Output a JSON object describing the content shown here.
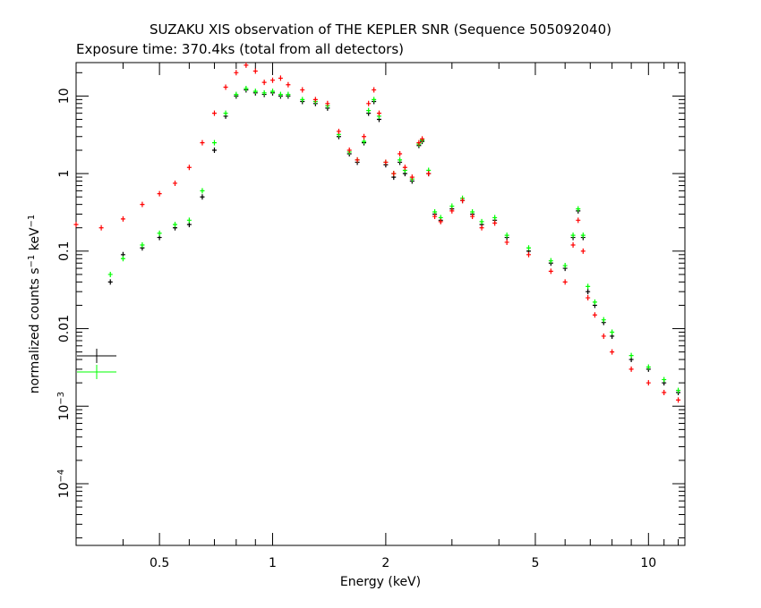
{
  "chart_data": {
    "type": "scatter",
    "title": "SUZAKU XIS observation of THE KEPLER SNR (Sequence 505092040)",
    "subtitle": "Exposure time: 370.4ks (total from all detectors)",
    "xlabel": "Energy (keV)",
    "ylabel": {
      "prefix": "normalized counts s",
      "sup1": "−1",
      "mid": " keV",
      "sup2": "−1"
    },
    "x_scale": "log",
    "y_scale": "log",
    "xlim": [
      0.3,
      12.5
    ],
    "ylim": [
      1.6e-05,
      27
    ],
    "x_ticks": [
      {
        "value": 0.5,
        "label": "0.5"
      },
      {
        "value": 1,
        "label": "1"
      },
      {
        "value": 2,
        "label": "2"
      },
      {
        "value": 5,
        "label": "5"
      },
      {
        "value": 10,
        "label": "10"
      }
    ],
    "y_ticks": [
      {
        "value": 10,
        "label": "10"
      },
      {
        "value": 1,
        "label": "1"
      },
      {
        "value": 0.1,
        "label": "0.1"
      },
      {
        "value": 0.01,
        "label": "0.01"
      },
      {
        "value": 0.001,
        "base": "10",
        "exp": "−3"
      },
      {
        "value": 0.0001,
        "base": "10",
        "exp": "−4"
      }
    ],
    "grid": false,
    "legend": {
      "entries": [
        {
          "color": "#000000"
        },
        {
          "color": "#00ff00"
        }
      ]
    },
    "series": [
      {
        "color": "#000000",
        "points": [
          [
            0.37,
            0.04
          ],
          [
            0.4,
            0.09
          ],
          [
            0.45,
            0.11
          ],
          [
            0.5,
            0.15
          ],
          [
            0.55,
            0.2
          ],
          [
            0.6,
            0.22
          ],
          [
            0.65,
            0.5
          ],
          [
            0.7,
            2.0
          ],
          [
            0.75,
            5.5
          ],
          [
            0.8,
            10.0
          ],
          [
            0.85,
            12.0
          ],
          [
            0.9,
            11.0
          ],
          [
            0.95,
            10.5
          ],
          [
            1.0,
            11.0
          ],
          [
            1.05,
            10.0
          ],
          [
            1.1,
            10.0
          ],
          [
            1.2,
            8.5
          ],
          [
            1.3,
            8.0
          ],
          [
            1.4,
            7.0
          ],
          [
            1.5,
            3.0
          ],
          [
            1.6,
            1.8
          ],
          [
            1.68,
            1.4
          ],
          [
            1.75,
            2.5
          ],
          [
            1.8,
            6.0
          ],
          [
            1.86,
            8.5
          ],
          [
            1.92,
            5.0
          ],
          [
            2.0,
            1.3
          ],
          [
            2.1,
            0.9
          ],
          [
            2.18,
            1.4
          ],
          [
            2.25,
            1.0
          ],
          [
            2.35,
            0.8
          ],
          [
            2.45,
            2.3
          ],
          [
            2.5,
            2.6
          ],
          [
            2.6,
            1.0
          ],
          [
            2.7,
            0.3
          ],
          [
            2.8,
            0.25
          ],
          [
            3.0,
            0.35
          ],
          [
            3.2,
            0.45
          ],
          [
            3.4,
            0.3
          ],
          [
            3.6,
            0.22
          ],
          [
            3.9,
            0.25
          ],
          [
            4.2,
            0.15
          ],
          [
            4.8,
            0.1
          ],
          [
            5.5,
            0.07
          ],
          [
            6.0,
            0.06
          ],
          [
            6.3,
            0.15
          ],
          [
            6.5,
            0.33
          ],
          [
            6.7,
            0.15
          ],
          [
            6.9,
            0.03
          ],
          [
            7.2,
            0.02
          ],
          [
            7.6,
            0.012
          ],
          [
            8.0,
            0.008
          ],
          [
            9.0,
            0.004
          ],
          [
            10.0,
            0.003
          ],
          [
            11.0,
            0.002
          ],
          [
            12.0,
            0.0015
          ]
        ]
      },
      {
        "color": "#00ff00",
        "points": [
          [
            0.37,
            0.05
          ],
          [
            0.4,
            0.08
          ],
          [
            0.45,
            0.12
          ],
          [
            0.5,
            0.17
          ],
          [
            0.55,
            0.22
          ],
          [
            0.6,
            0.25
          ],
          [
            0.65,
            0.6
          ],
          [
            0.7,
            2.5
          ],
          [
            0.75,
            6.0
          ],
          [
            0.8,
            10.5
          ],
          [
            0.85,
            12.5
          ],
          [
            0.9,
            11.5
          ],
          [
            0.95,
            11.0
          ],
          [
            1.0,
            11.5
          ],
          [
            1.05,
            10.5
          ],
          [
            1.1,
            10.5
          ],
          [
            1.2,
            9.0
          ],
          [
            1.3,
            8.5
          ],
          [
            1.4,
            7.5
          ],
          [
            1.5,
            3.2
          ],
          [
            1.6,
            1.9
          ],
          [
            1.68,
            1.5
          ],
          [
            1.75,
            2.6
          ],
          [
            1.8,
            6.5
          ],
          [
            1.86,
            9.0
          ],
          [
            1.92,
            5.5
          ],
          [
            2.0,
            1.4
          ],
          [
            2.1,
            1.0
          ],
          [
            2.18,
            1.5
          ],
          [
            2.25,
            1.1
          ],
          [
            2.35,
            0.85
          ],
          [
            2.45,
            2.4
          ],
          [
            2.5,
            2.7
          ],
          [
            2.6,
            1.1
          ],
          [
            2.7,
            0.32
          ],
          [
            2.8,
            0.27
          ],
          [
            3.0,
            0.38
          ],
          [
            3.2,
            0.48
          ],
          [
            3.4,
            0.32
          ],
          [
            3.6,
            0.24
          ],
          [
            3.9,
            0.27
          ],
          [
            4.2,
            0.16
          ],
          [
            4.8,
            0.11
          ],
          [
            5.5,
            0.075
          ],
          [
            6.0,
            0.065
          ],
          [
            6.3,
            0.16
          ],
          [
            6.5,
            0.35
          ],
          [
            6.7,
            0.16
          ],
          [
            6.9,
            0.035
          ],
          [
            7.2,
            0.022
          ],
          [
            7.6,
            0.013
          ],
          [
            8.0,
            0.009
          ],
          [
            9.0,
            0.0045
          ],
          [
            10.0,
            0.0032
          ],
          [
            11.0,
            0.0022
          ],
          [
            12.0,
            0.0016
          ]
        ]
      },
      {
        "color": "#ff0000",
        "points": [
          [
            0.3,
            0.22
          ],
          [
            0.35,
            0.2
          ],
          [
            0.4,
            0.26
          ],
          [
            0.45,
            0.4
          ],
          [
            0.5,
            0.55
          ],
          [
            0.55,
            0.75
          ],
          [
            0.6,
            1.2
          ],
          [
            0.65,
            2.5
          ],
          [
            0.7,
            6.0
          ],
          [
            0.75,
            13.0
          ],
          [
            0.8,
            20.0
          ],
          [
            0.85,
            25.0
          ],
          [
            0.9,
            21.0
          ],
          [
            0.95,
            15.0
          ],
          [
            1.0,
            16.0
          ],
          [
            1.05,
            17.0
          ],
          [
            1.1,
            14.0
          ],
          [
            1.2,
            12.0
          ],
          [
            1.3,
            9.0
          ],
          [
            1.4,
            8.0
          ],
          [
            1.5,
            3.5
          ],
          [
            1.6,
            2.0
          ],
          [
            1.68,
            1.5
          ],
          [
            1.75,
            3.0
          ],
          [
            1.8,
            8.0
          ],
          [
            1.86,
            12.0
          ],
          [
            1.92,
            6.0
          ],
          [
            2.0,
            1.4
          ],
          [
            2.1,
            1.0
          ],
          [
            2.18,
            1.8
          ],
          [
            2.25,
            1.2
          ],
          [
            2.35,
            0.9
          ],
          [
            2.45,
            2.5
          ],
          [
            2.5,
            2.8
          ],
          [
            2.6,
            1.0
          ],
          [
            2.7,
            0.28
          ],
          [
            2.8,
            0.24
          ],
          [
            3.0,
            0.33
          ],
          [
            3.2,
            0.45
          ],
          [
            3.4,
            0.28
          ],
          [
            3.6,
            0.2
          ],
          [
            3.9,
            0.23
          ],
          [
            4.2,
            0.13
          ],
          [
            4.8,
            0.09
          ],
          [
            5.5,
            0.055
          ],
          [
            6.0,
            0.04
          ],
          [
            6.3,
            0.12
          ],
          [
            6.5,
            0.25
          ],
          [
            6.7,
            0.1
          ],
          [
            6.9,
            0.025
          ],
          [
            7.2,
            0.015
          ],
          [
            7.6,
            0.008
          ],
          [
            8.0,
            0.005
          ],
          [
            9.0,
            0.003
          ],
          [
            10.0,
            0.002
          ],
          [
            11.0,
            0.0015
          ],
          [
            12.0,
            0.0012
          ]
        ]
      }
    ]
  }
}
